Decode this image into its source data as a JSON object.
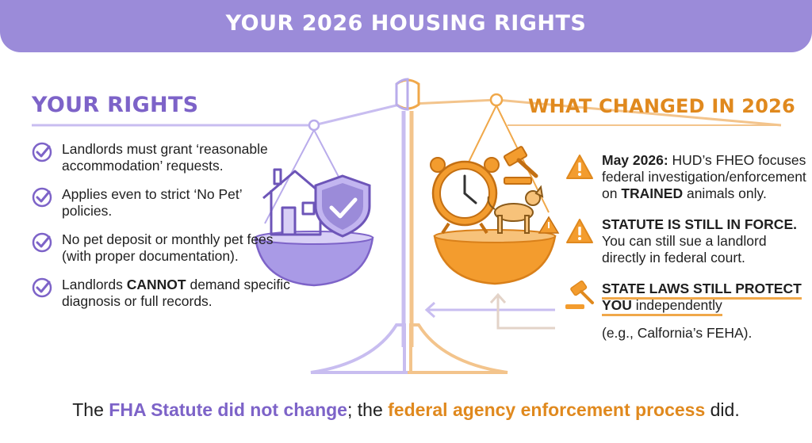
{
  "banner": {
    "title": "YOUR 2026 HOUSING RIGHTS"
  },
  "left": {
    "heading": "YOUR RIGHTS",
    "items": [
      {
        "text": "Landlords must grant ‘reasonable accommodation’ requests."
      },
      {
        "text": "Applies even to strict ‘No Pet’ policies."
      },
      {
        "text": "No pet deposit or monthly pet fees (with proper documentation)."
      },
      {
        "before": "Landlords ",
        "strong": "CANNOT",
        "after": " demand specific diagnosis or full records."
      }
    ]
  },
  "right": {
    "heading": "WHAT CHANGED IN 2026",
    "items": [
      {
        "strong": "May 2026:",
        "text1": " HUD’s FHEO focuses federal investigation/enforcement on ",
        "strong2": "TRAINED",
        "text2": " animals only."
      },
      {
        "strong": "STATUTE IS STILL IN FORCE.",
        "text1": "You can still sue a landlord directly in federal court."
      },
      {
        "strong": "STATE LAWS STILL PROTECT YOU",
        "text1": " independently",
        "note": "(e.g., Calfornia’s FEHA)."
      }
    ]
  },
  "footer": {
    "p1": "The ",
    "h1": "FHA Statute did not change",
    "p2": "; the ",
    "h2": "federal agency enforcement process",
    "p3": " did."
  },
  "icons": {
    "left_pan": [
      "house-icon",
      "shield-check-icon"
    ],
    "right_pan": [
      "alarm-clock-icon",
      "gavel-icon",
      "dog-icon",
      "warning-icon"
    ],
    "left_bullets": "check-circle-icon",
    "right_bullets": [
      "warning-icon",
      "warning-icon",
      "gavel-icon"
    ]
  },
  "colors": {
    "purple": "#7d63c8",
    "lavender": "#9b8bd9",
    "orange": "#e0891e",
    "light_orange": "#f0a84a"
  }
}
